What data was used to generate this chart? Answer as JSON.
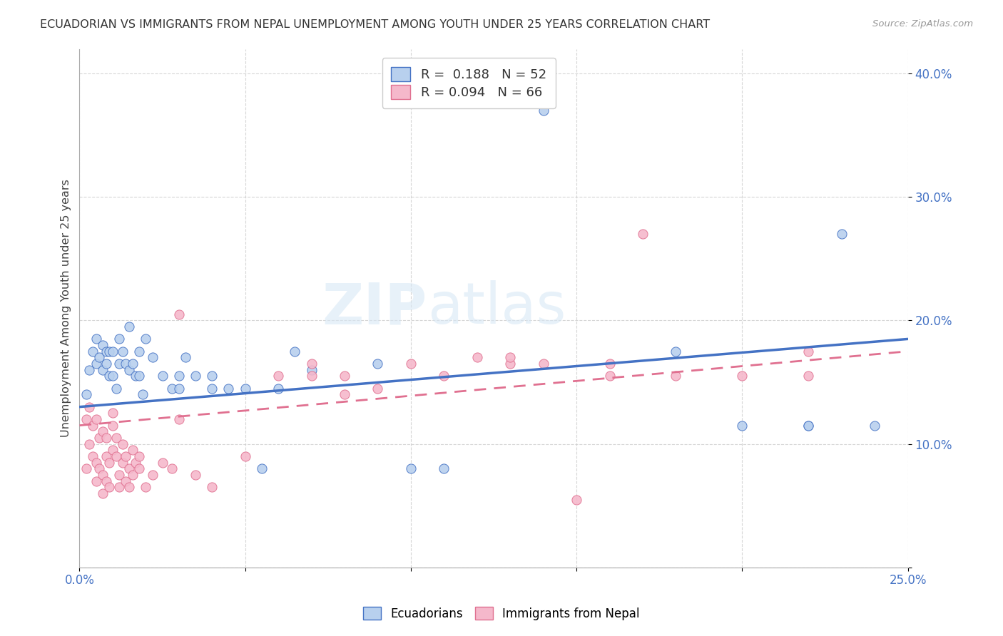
{
  "title": "ECUADORIAN VS IMMIGRANTS FROM NEPAL UNEMPLOYMENT AMONG YOUTH UNDER 25 YEARS CORRELATION CHART",
  "source": "Source: ZipAtlas.com",
  "ylabel": "Unemployment Among Youth under 25 years",
  "legend_label1": "Ecuadorians",
  "legend_label2": "Immigrants from Nepal",
  "watermark_zip": "ZIP",
  "watermark_atlas": "atlas",
  "blue_color": "#b8d0ee",
  "pink_color": "#f5b8cb",
  "blue_line_color": "#4472c4",
  "pink_line_color": "#e07090",
  "xlim": [
    0.0,
    0.25
  ],
  "ylim": [
    0.0,
    0.42
  ],
  "blue_scatter_x": [
    0.002,
    0.003,
    0.004,
    0.005,
    0.005,
    0.006,
    0.007,
    0.007,
    0.008,
    0.008,
    0.009,
    0.009,
    0.01,
    0.01,
    0.011,
    0.012,
    0.012,
    0.013,
    0.014,
    0.015,
    0.015,
    0.016,
    0.017,
    0.018,
    0.018,
    0.019,
    0.02,
    0.022,
    0.025,
    0.028,
    0.03,
    0.03,
    0.032,
    0.035,
    0.04,
    0.04,
    0.045,
    0.05,
    0.055,
    0.06,
    0.065,
    0.07,
    0.09,
    0.1,
    0.11,
    0.14,
    0.18,
    0.2,
    0.22,
    0.22,
    0.23,
    0.24
  ],
  "blue_scatter_y": [
    0.14,
    0.16,
    0.175,
    0.165,
    0.185,
    0.17,
    0.16,
    0.18,
    0.175,
    0.165,
    0.155,
    0.175,
    0.155,
    0.175,
    0.145,
    0.165,
    0.185,
    0.175,
    0.165,
    0.195,
    0.16,
    0.165,
    0.155,
    0.175,
    0.155,
    0.14,
    0.185,
    0.17,
    0.155,
    0.145,
    0.155,
    0.145,
    0.17,
    0.155,
    0.145,
    0.155,
    0.145,
    0.145,
    0.08,
    0.145,
    0.175,
    0.16,
    0.165,
    0.08,
    0.08,
    0.37,
    0.175,
    0.115,
    0.115,
    0.115,
    0.27,
    0.115
  ],
  "pink_scatter_x": [
    0.002,
    0.002,
    0.003,
    0.003,
    0.004,
    0.004,
    0.005,
    0.005,
    0.005,
    0.006,
    0.006,
    0.007,
    0.007,
    0.007,
    0.008,
    0.008,
    0.008,
    0.009,
    0.009,
    0.01,
    0.01,
    0.01,
    0.011,
    0.011,
    0.012,
    0.012,
    0.013,
    0.013,
    0.014,
    0.014,
    0.015,
    0.015,
    0.016,
    0.016,
    0.017,
    0.018,
    0.018,
    0.02,
    0.022,
    0.025,
    0.028,
    0.03,
    0.035,
    0.04,
    0.05,
    0.06,
    0.07,
    0.08,
    0.09,
    0.1,
    0.11,
    0.12,
    0.13,
    0.14,
    0.15,
    0.16,
    0.17,
    0.18,
    0.2,
    0.22,
    0.03,
    0.07,
    0.08,
    0.13,
    0.16,
    0.22
  ],
  "pink_scatter_y": [
    0.12,
    0.08,
    0.1,
    0.13,
    0.09,
    0.115,
    0.12,
    0.07,
    0.085,
    0.105,
    0.08,
    0.11,
    0.075,
    0.06,
    0.09,
    0.07,
    0.105,
    0.085,
    0.065,
    0.125,
    0.095,
    0.115,
    0.09,
    0.105,
    0.075,
    0.065,
    0.1,
    0.085,
    0.07,
    0.09,
    0.065,
    0.08,
    0.075,
    0.095,
    0.085,
    0.09,
    0.08,
    0.065,
    0.075,
    0.085,
    0.08,
    0.12,
    0.075,
    0.065,
    0.09,
    0.155,
    0.165,
    0.155,
    0.145,
    0.165,
    0.155,
    0.17,
    0.165,
    0.165,
    0.055,
    0.155,
    0.27,
    0.155,
    0.155,
    0.155,
    0.205,
    0.155,
    0.14,
    0.17,
    0.165,
    0.175
  ],
  "blue_trendline_start": 0.13,
  "blue_trendline_end": 0.185,
  "pink_trendline_start": 0.115,
  "pink_trendline_end": 0.175
}
